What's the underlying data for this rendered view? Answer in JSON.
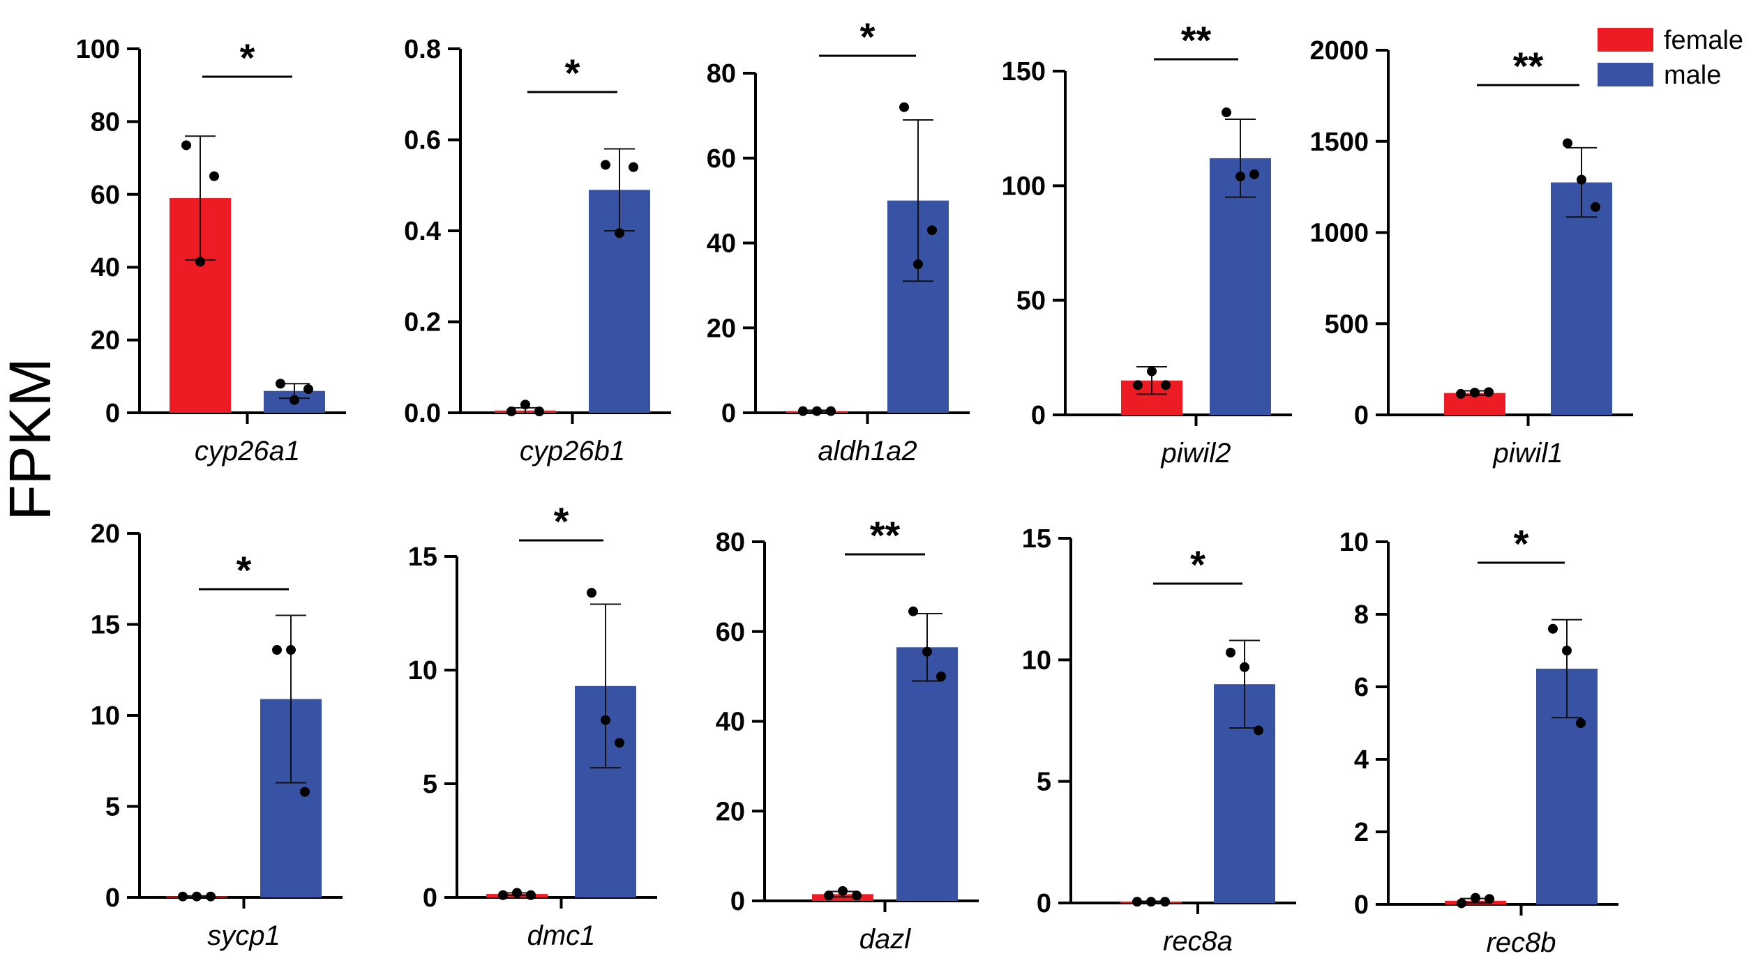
{
  "chart_data": {
    "type": "bar",
    "ylabel": "FPKM",
    "legend": {
      "placement": "top-right",
      "entries": [
        {
          "name": "female",
          "color": "#ed1c24"
        },
        {
          "name": "male",
          "color": "#3953a4"
        }
      ]
    },
    "categories": [
      "female",
      "male"
    ],
    "panels": [
      {
        "gene": "cyp26a1",
        "ylim": [
          0,
          100
        ],
        "ticks": [
          "0",
          "20",
          "40",
          "60",
          "80",
          "100"
        ],
        "series": [
          {
            "name": "female",
            "mean": 59,
            "sd": 17,
            "points": [
              73.5,
              41.5,
              65
            ]
          },
          {
            "name": "male",
            "mean": 6,
            "sd": 2,
            "points": [
              8,
              3.5,
              6.5
            ]
          }
        ],
        "significance": "*"
      },
      {
        "gene": "cyp26b1",
        "ylim": [
          0,
          0.8
        ],
        "ticks": [
          "0.0",
          "0.2",
          "0.4",
          "0.6",
          "0.8"
        ],
        "series": [
          {
            "name": "female",
            "mean": 0.005,
            "sd": 0.006,
            "points": [
              0.003,
              0.018,
              0.003
            ]
          },
          {
            "name": "male",
            "mean": 0.49,
            "sd": 0.09,
            "points": [
              0.545,
              0.395,
              0.54
            ]
          }
        ],
        "significance": "*"
      },
      {
        "gene": "aldh1a2",
        "ylim": [
          0,
          80
        ],
        "ticks": [
          "0",
          "20",
          "40",
          "60",
          "80"
        ],
        "series": [
          {
            "name": "female",
            "mean": 0.4,
            "sd": 0.2,
            "points": [
              0.4,
              0.4,
              0.4
            ]
          },
          {
            "name": "male",
            "mean": 50,
            "sd": 19,
            "points": [
              72,
              35,
              43
            ]
          }
        ],
        "significance": "*"
      },
      {
        "gene": "piwil2",
        "ylim": [
          0,
          150
        ],
        "ticks": [
          "0",
          "50",
          "100",
          "150"
        ],
        "series": [
          {
            "name": "female",
            "mean": 15,
            "sd": 6,
            "points": [
              13,
              19,
              13
            ]
          },
          {
            "name": "male",
            "mean": 112,
            "sd": 17,
            "points": [
              132,
              104,
              105
            ]
          }
        ],
        "significance": "**"
      },
      {
        "gene": "piwil1",
        "ylim": [
          0,
          2000
        ],
        "ticks": [
          "0",
          "500",
          "1000",
          "1500",
          "2000"
        ],
        "series": [
          {
            "name": "female",
            "mean": 120,
            "sd": 12,
            "points": [
              115,
              122,
              125
            ]
          },
          {
            "name": "male",
            "mean": 1275,
            "sd": 190,
            "points": [
              1490,
              1290,
              1140
            ]
          }
        ],
        "significance": "**"
      },
      {
        "gene": "sycp1",
        "ylim": [
          0,
          20
        ],
        "ticks": [
          "0",
          "5",
          "10",
          "15",
          "20"
        ],
        "series": [
          {
            "name": "female",
            "mean": 0.05,
            "sd": 0.03,
            "points": [
              0.05,
              0.05,
              0.05
            ]
          },
          {
            "name": "male",
            "mean": 10.9,
            "sd": 4.6,
            "points": [
              13.6,
              13.6,
              5.8
            ]
          }
        ],
        "significance": "*"
      },
      {
        "gene": "dmc1",
        "ylim": [
          0,
          15
        ],
        "ticks": [
          "0",
          "5",
          "10",
          "15"
        ],
        "series": [
          {
            "name": "female",
            "mean": 0.15,
            "sd": 0.05,
            "points": [
              0.1,
              0.2,
              0.1
            ]
          },
          {
            "name": "male",
            "mean": 9.3,
            "sd": 3.6,
            "points": [
              13.4,
              7.8,
              6.8
            ]
          }
        ],
        "significance": "*"
      },
      {
        "gene": "dazl",
        "ylim": [
          0,
          80
        ],
        "ticks": [
          "0",
          "20",
          "40",
          "60",
          "80"
        ],
        "series": [
          {
            "name": "female",
            "mean": 1.5,
            "sd": 0.6,
            "points": [
              1.2,
              2.2,
              1.2
            ]
          },
          {
            "name": "male",
            "mean": 56.5,
            "sd": 7.5,
            "points": [
              64.5,
              55.5,
              50
            ]
          }
        ],
        "significance": "**"
      },
      {
        "gene": "rec8a",
        "ylim": [
          0,
          15
        ],
        "ticks": [
          "0",
          "5",
          "10",
          "15"
        ],
        "series": [
          {
            "name": "female",
            "mean": 0.05,
            "sd": 0.02,
            "points": [
              0.05,
              0.05,
              0.05
            ]
          },
          {
            "name": "male",
            "mean": 9,
            "sd": 1.8,
            "points": [
              10.3,
              9.7,
              7.1
            ]
          }
        ],
        "significance": "*"
      },
      {
        "gene": "rec8b",
        "ylim": [
          0,
          10
        ],
        "ticks": [
          "0",
          "2",
          "4",
          "6",
          "8",
          "10"
        ],
        "series": [
          {
            "name": "female",
            "mean": 0.1,
            "sd": 0.06,
            "points": [
              0.03,
              0.18,
              0.15
            ]
          },
          {
            "name": "male",
            "mean": 6.5,
            "sd": 1.35,
            "points": [
              7.6,
              7,
              5
            ]
          }
        ],
        "significance": "*"
      }
    ]
  }
}
